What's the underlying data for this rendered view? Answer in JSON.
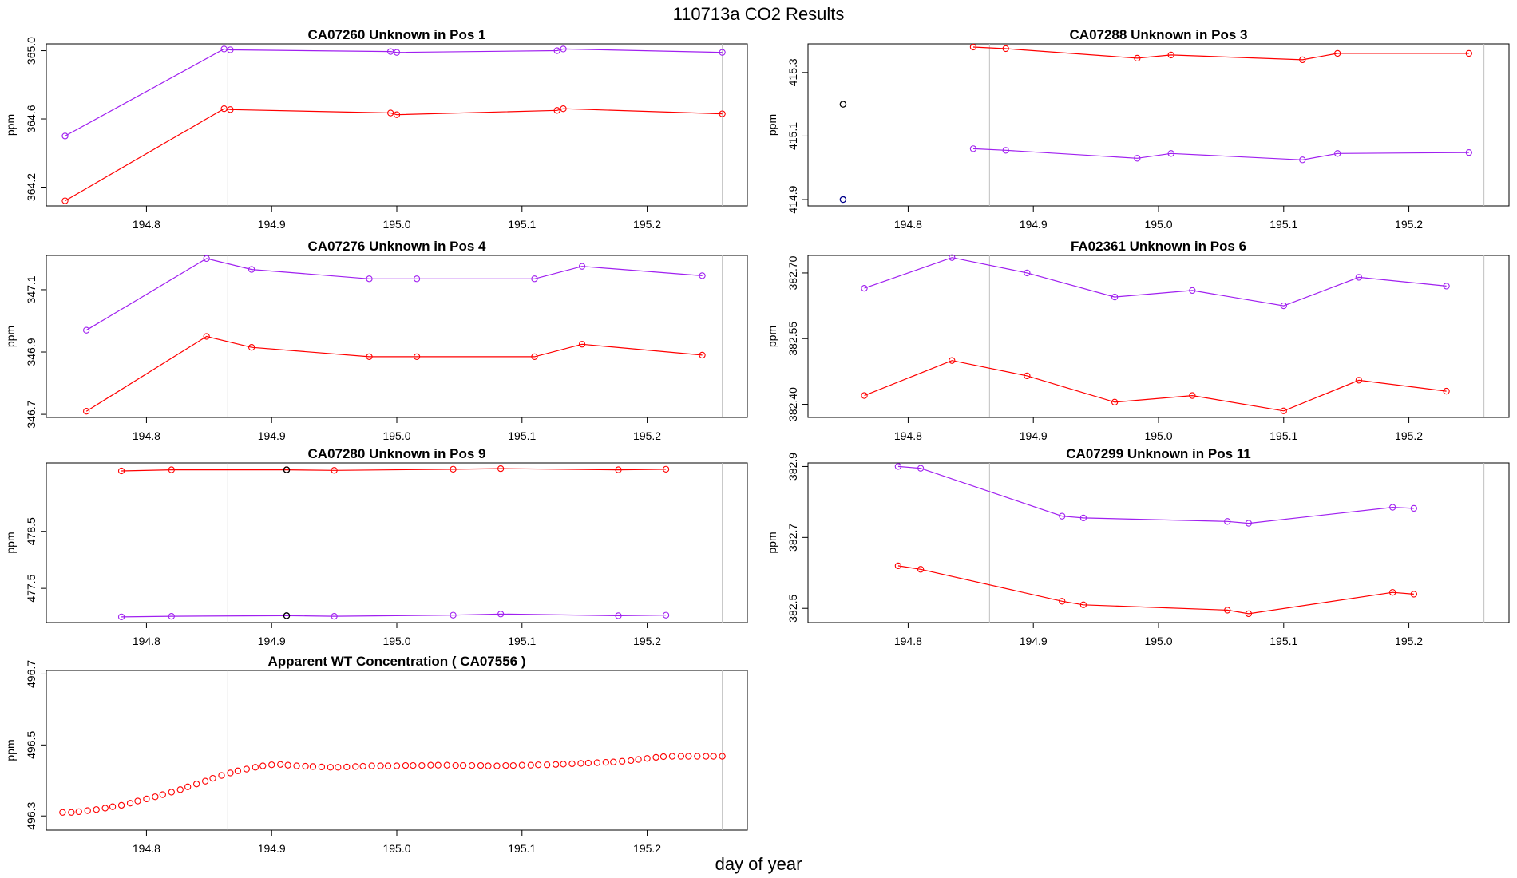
{
  "figure": {
    "title": "110713a  CO2 Results",
    "xlabel": "day of year"
  },
  "colors": {
    "red_series": "#ff0000",
    "purple_series": "#a020f0",
    "flag_dark": "#000000",
    "flag_blue": "#00008b",
    "vline": "#c0c0c0",
    "frame": "#000000"
  },
  "chart_data": [
    {
      "type": "line",
      "title": "CA07260    Unknown in Pos 1",
      "ylabel": "ppm",
      "xlim": [
        194.72,
        195.28
      ],
      "ylim": [
        364.09,
        365.04
      ],
      "xticks": [
        194.8,
        194.9,
        195.0,
        195.1,
        195.2
      ],
      "yticks": [
        364.2,
        364.6,
        365.0
      ],
      "vlines": [
        194.865,
        195.26
      ],
      "series": [
        {
          "color": "purple",
          "x": [
            194.735,
            194.862,
            194.867,
            194.995,
            195.0,
            195.128,
            195.133,
            195.26
          ],
          "y": [
            364.5,
            365.01,
            365.005,
            364.995,
            364.99,
            365.0,
            365.01,
            364.99
          ]
        },
        {
          "color": "red",
          "x": [
            194.735,
            194.862,
            194.867,
            194.995,
            195.0,
            195.128,
            195.133,
            195.26
          ],
          "y": [
            364.12,
            364.66,
            364.655,
            364.635,
            364.625,
            364.65,
            364.66,
            364.63
          ]
        }
      ],
      "flagged_points": []
    },
    {
      "type": "line",
      "title": "CA07288    Unknown in Pos 3",
      "ylabel": "ppm",
      "xlim": [
        194.72,
        195.28
      ],
      "ylim": [
        414.88,
        415.39
      ],
      "xticks": [
        194.8,
        194.9,
        195.0,
        195.1,
        195.2
      ],
      "yticks": [
        414.9,
        415.1,
        415.3
      ],
      "vlines": [
        194.865,
        195.26
      ],
      "series": [
        {
          "color": "red",
          "x": [
            194.852,
            194.878,
            194.983,
            195.01,
            195.115,
            195.143,
            195.248
          ],
          "y": [
            415.38,
            415.375,
            415.345,
            415.355,
            415.34,
            415.36,
            415.36
          ]
        },
        {
          "color": "purple",
          "x": [
            194.852,
            194.878,
            194.983,
            195.01,
            195.115,
            195.143,
            195.248
          ],
          "y": [
            415.06,
            415.055,
            415.03,
            415.045,
            415.025,
            415.045,
            415.048
          ]
        }
      ],
      "flagged_points": [
        {
          "x": 194.748,
          "y": 415.2,
          "color": "dark"
        },
        {
          "x": 194.748,
          "y": 414.9,
          "color": "blue"
        }
      ]
    },
    {
      "type": "line",
      "title": "CA07276    Unknown in Pos 4",
      "ylabel": "ppm",
      "xlim": [
        194.72,
        195.28
      ],
      "ylim": [
        346.69,
        347.21
      ],
      "xticks": [
        194.8,
        194.9,
        195.0,
        195.1,
        195.2
      ],
      "yticks": [
        346.7,
        346.9,
        347.1
      ],
      "vlines": [
        194.865,
        195.26
      ],
      "series": [
        {
          "color": "purple",
          "x": [
            194.752,
            194.848,
            194.884,
            194.978,
            195.016,
            195.11,
            195.148,
            195.244
          ],
          "y": [
            346.97,
            347.2,
            347.165,
            347.135,
            347.135,
            347.135,
            347.175,
            347.145
          ]
        },
        {
          "color": "red",
          "x": [
            194.752,
            194.848,
            194.884,
            194.978,
            195.016,
            195.11,
            195.148,
            195.244
          ],
          "y": [
            346.71,
            346.95,
            346.915,
            346.885,
            346.885,
            346.885,
            346.925,
            346.89
          ]
        }
      ],
      "flagged_points": []
    },
    {
      "type": "line",
      "title": "FA02361    Unknown in Pos 6",
      "ylabel": "ppm",
      "xlim": [
        194.72,
        195.28
      ],
      "ylim": [
        382.37,
        382.74
      ],
      "xticks": [
        194.8,
        194.9,
        195.0,
        195.1,
        195.2
      ],
      "yticks": [
        382.4,
        382.55,
        382.7
      ],
      "vlines": [
        194.865,
        195.26
      ],
      "series": [
        {
          "color": "purple",
          "x": [
            194.765,
            194.835,
            194.895,
            194.965,
            195.027,
            195.1,
            195.16,
            195.23
          ],
          "y": [
            382.665,
            382.735,
            382.7,
            382.645,
            382.66,
            382.625,
            382.69,
            382.67
          ]
        },
        {
          "color": "red",
          "x": [
            194.765,
            194.835,
            194.895,
            194.965,
            195.027,
            195.1,
            195.16,
            195.23
          ],
          "y": [
            382.42,
            382.5,
            382.465,
            382.405,
            382.42,
            382.385,
            382.455,
            382.43
          ]
        }
      ],
      "flagged_points": []
    },
    {
      "type": "line",
      "title": "CA07280    Unknown in Pos 9",
      "ylabel": "ppm",
      "xlim": [
        194.72,
        195.28
      ],
      "ylim": [
        476.9,
        479.7
      ],
      "xticks": [
        194.8,
        194.9,
        195.0,
        195.1,
        195.2
      ],
      "yticks": [
        477.5,
        478.5
      ],
      "vlines": [
        194.865,
        195.26
      ],
      "series": [
        {
          "color": "red",
          "x": [
            194.78,
            194.82,
            194.912,
            194.95,
            195.045,
            195.083,
            195.177,
            195.215
          ],
          "y": [
            479.56,
            479.58,
            479.58,
            479.57,
            479.59,
            479.6,
            479.58,
            479.59
          ]
        },
        {
          "color": "purple",
          "x": [
            194.78,
            194.82,
            194.912,
            194.95,
            195.045,
            195.083,
            195.177,
            195.215
          ],
          "y": [
            477.0,
            477.01,
            477.02,
            477.01,
            477.03,
            477.05,
            477.02,
            477.03
          ]
        }
      ],
      "flagged_points": [
        {
          "x": 194.912,
          "y": 479.58,
          "color": "dark"
        },
        {
          "x": 194.912,
          "y": 477.02,
          "color": "dark"
        }
      ]
    },
    {
      "type": "line",
      "title": "CA07299    Unknown in Pos 11",
      "ylabel": "ppm",
      "xlim": [
        194.72,
        195.28
      ],
      "ylim": [
        382.46,
        382.91
      ],
      "xticks": [
        194.8,
        194.9,
        195.0,
        195.1,
        195.2
      ],
      "yticks": [
        382.5,
        382.7,
        382.9
      ],
      "vlines": [
        194.865,
        195.26
      ],
      "series": [
        {
          "color": "purple",
          "x": [
            194.792,
            194.81,
            194.923,
            194.94,
            195.055,
            195.072,
            195.187,
            195.204
          ],
          "y": [
            382.9,
            382.895,
            382.76,
            382.755,
            382.745,
            382.74,
            382.785,
            382.782
          ]
        },
        {
          "color": "red",
          "x": [
            194.792,
            194.81,
            194.923,
            194.94,
            195.055,
            195.072,
            195.187,
            195.204
          ],
          "y": [
            382.62,
            382.61,
            382.52,
            382.51,
            382.495,
            382.485,
            382.545,
            382.54
          ]
        }
      ],
      "flagged_points": []
    },
    {
      "type": "scatter",
      "title": "Apparent WT Concentration ( CA07556 )",
      "ylabel": "ppm",
      "xlim": [
        194.72,
        195.28
      ],
      "ylim": [
        496.26,
        496.71
      ],
      "xticks": [
        194.8,
        194.9,
        195.0,
        195.1,
        195.2
      ],
      "yticks": [
        496.3,
        496.5,
        496.7
      ],
      "vlines": [
        194.865,
        195.26
      ],
      "series": [
        {
          "color": "red",
          "x": [
            194.733,
            194.74,
            194.746,
            194.753,
            194.76,
            194.767,
            194.773,
            194.78,
            194.787,
            194.793,
            194.8,
            194.807,
            194.813,
            194.82,
            194.827,
            194.833,
            194.84,
            194.847,
            194.853,
            194.86,
            194.867,
            194.873,
            194.88,
            194.887,
            194.893,
            194.9,
            194.907,
            194.913,
            194.92,
            194.927,
            194.933,
            194.94,
            194.947,
            194.953,
            194.96,
            194.967,
            194.973,
            194.98,
            194.987,
            194.993,
            195.0,
            195.007,
            195.013,
            195.02,
            195.027,
            195.033,
            195.04,
            195.047,
            195.053,
            195.06,
            195.067,
            195.073,
            195.08,
            195.087,
            195.093,
            195.1,
            195.107,
            195.113,
            195.12,
            195.127,
            195.133,
            195.14,
            195.147,
            195.153,
            195.16,
            195.167,
            195.173,
            195.18,
            195.187,
            195.193,
            195.2,
            195.207,
            195.213,
            195.22,
            195.227,
            195.233,
            195.24,
            195.247,
            195.253,
            195.26
          ],
          "y": [
            496.31,
            496.31,
            496.312,
            496.315,
            496.318,
            496.322,
            496.326,
            496.33,
            496.336,
            496.342,
            496.348,
            496.354,
            496.36,
            496.367,
            496.374,
            496.382,
            496.39,
            496.398,
            496.406,
            496.414,
            496.421,
            496.427,
            496.432,
            496.437,
            496.441,
            496.444,
            496.445,
            496.443,
            496.441,
            496.44,
            496.439,
            496.438,
            496.437,
            496.437,
            496.438,
            496.439,
            496.44,
            496.441,
            496.441,
            496.441,
            496.441,
            496.442,
            496.442,
            496.442,
            496.443,
            496.443,
            496.443,
            496.442,
            496.442,
            496.442,
            496.442,
            496.441,
            496.441,
            496.442,
            496.442,
            496.443,
            496.443,
            496.444,
            496.444,
            496.445,
            496.446,
            496.447,
            496.448,
            496.449,
            496.45,
            496.451,
            496.452,
            496.454,
            496.456,
            496.459,
            496.462,
            496.465,
            496.467,
            496.468,
            496.468,
            496.468,
            496.468,
            496.468,
            496.468,
            496.468
          ]
        }
      ],
      "flagged_points": []
    }
  ]
}
